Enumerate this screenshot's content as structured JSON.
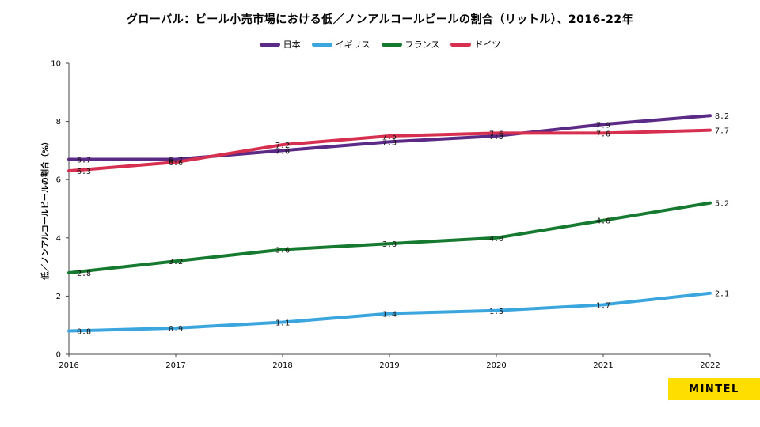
{
  "chart_data": {
    "type": "line",
    "title": "グローバル：ビール小売市場における低／ノンアルコールビールの割合（リットル）、2016-22年",
    "xlabel": "",
    "ylabel": "低／ノンアルコールビールの割合（%）",
    "ylim": [
      0,
      10
    ],
    "yticks": [
      0,
      2,
      4,
      6,
      8,
      10
    ],
    "categories": [
      "2016",
      "2017",
      "2018",
      "2019",
      "2020",
      "2021",
      "2022"
    ],
    "legend_position": "top-center",
    "grid": false,
    "series": [
      {
        "name": "日本",
        "color": "#5b2a86",
        "values": [
          6.7,
          6.7,
          7.0,
          7.3,
          7.5,
          7.9,
          8.2
        ]
      },
      {
        "name": "イギリス",
        "color": "#3aa6dd",
        "values": [
          0.8,
          0.9,
          1.1,
          1.4,
          1.5,
          1.7,
          2.1
        ]
      },
      {
        "name": "フランス",
        "color": "#157a2f",
        "values": [
          2.8,
          3.2,
          3.6,
          3.8,
          4.0,
          4.6,
          5.2
        ]
      },
      {
        "name": "ドイツ",
        "color": "#d62f4f",
        "values": [
          6.3,
          6.6,
          7.2,
          7.5,
          7.6,
          7.6,
          7.7
        ]
      }
    ]
  },
  "brand": {
    "name": "MINTEL",
    "color": "#fedd00"
  }
}
